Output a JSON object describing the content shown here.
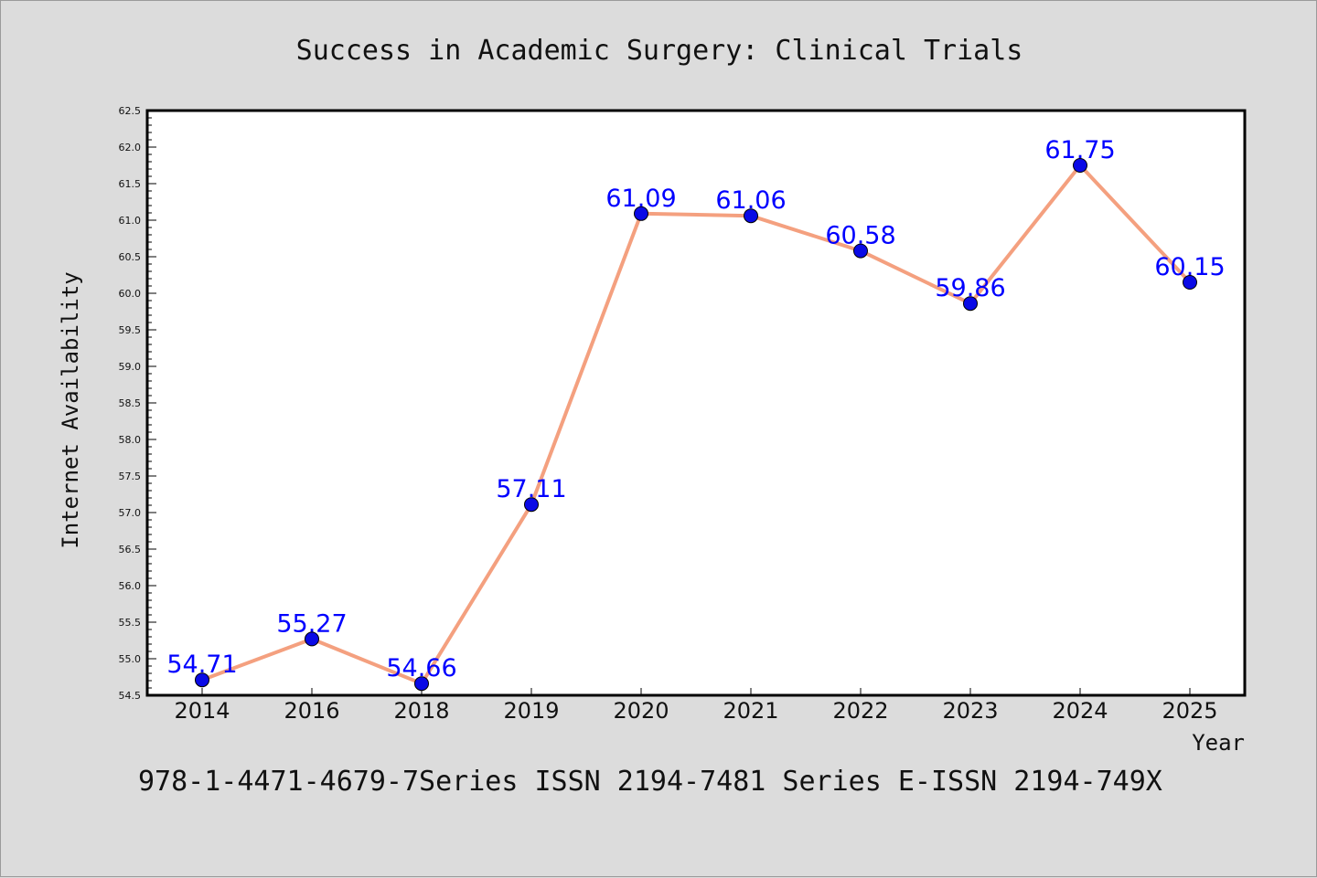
{
  "colors": {
    "background": "#dcdcdc",
    "plot_background": "#ffffff",
    "line": "#f4a07f",
    "marker": "#0a0ae6",
    "label": "#0000ff"
  },
  "footer": "978-1-4471-4679-7Series ISSN 2194-7481 Series E-ISSN 2194-749X",
  "chart_data": {
    "type": "line",
    "title": "Success in Academic Surgery: Clinical Trials",
    "xlabel": "Year",
    "ylabel": "Internet Availability",
    "categories": [
      "2014",
      "2016",
      "2018",
      "2019",
      "2020",
      "2021",
      "2022",
      "2023",
      "2024",
      "2025"
    ],
    "series": [
      {
        "values": [
          54.71,
          55.27,
          54.66,
          57.11,
          61.09,
          61.06,
          60.58,
          59.86,
          61.75,
          60.15
        ],
        "labels": [
          "54.71",
          "55.27",
          "54.66",
          "57.11",
          "61.09",
          "61.06",
          "60.58",
          "59.86",
          "61.75",
          "60.15"
        ]
      }
    ],
    "ylim": [
      54.5,
      62.5
    ],
    "yticks": [
      "54.5",
      "55.0",
      "55.5",
      "56.0",
      "56.5",
      "57.0",
      "57.5",
      "58.0",
      "58.5",
      "59.0",
      "59.5",
      "60.0",
      "60.5",
      "61.0",
      "61.5",
      "62.0",
      "62.5"
    ],
    "grid": false,
    "legend": "none"
  }
}
